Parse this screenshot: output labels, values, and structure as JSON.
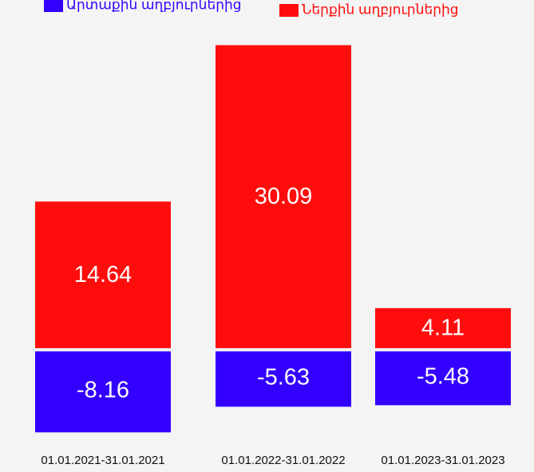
{
  "chart_data": {
    "type": "stacked_bar",
    "categories": [
      "01.01.2021-31.01.2021",
      "01.01.2022-31.01.2022",
      "01.01.2023-31.01.2023"
    ],
    "series": [
      {
        "name": "Արտաքին աղբյուրներից",
        "color": "#3300ff",
        "values": [
          -8.16,
          -5.63,
          -5.48
        ]
      },
      {
        "name": "Ներքին աղբյուրներից",
        "color": "#ff0d0d",
        "values": [
          14.64,
          30.09,
          4.11
        ]
      }
    ],
    "ylim": [
      -9,
      31
    ]
  }
}
